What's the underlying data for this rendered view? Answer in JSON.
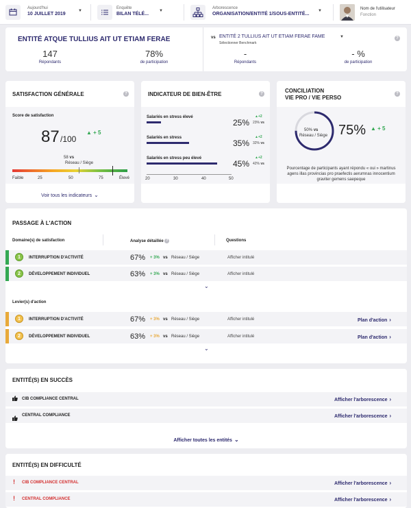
{
  "header": {
    "date_label": "Aujourd'hui",
    "date_value": "10 JUILLET 2019",
    "survey_label": "Enquête",
    "survey_value": "BILAN TÉLÉ...",
    "tree_label": "Arborescence",
    "tree_value": "ORGANISATION/ENTITÉ 1/SOUS-ENTITÉ...",
    "user_name": "Nom de l'utilisateur",
    "user_role": "Fonction"
  },
  "entity": {
    "name": "ENTITÉ ATQUE TULLIUS AIT UT ETIAM FERAE",
    "respondents": "147",
    "respondents_label": "Répondants",
    "participation": "78%",
    "participation_label": "de participation",
    "vs": "vs",
    "bench_name": "ENTITÉ 2 TULLIUS AIT UT ETIAM FERAE FAME",
    "bench_sub": "Sélectionner Benchmark",
    "bench_respondents": "-",
    "bench_respondents_label": "Répondants",
    "bench_participation": "- %",
    "bench_participation_label": "de participation"
  },
  "satisfaction": {
    "title": "SATISFACTION GÉNÉRALE",
    "score_label": "Score de satisfaction",
    "score": "87",
    "max": "/100",
    "delta": "▲ + 5",
    "bench_value": "58",
    "vs": "vs",
    "bench_label": "Réseau / Siège",
    "scale": [
      "Faible",
      "25",
      "50",
      "75",
      "Élevé"
    ],
    "link": "Voir tous les indicateurs",
    "score_fraction": 0.87,
    "bench_fraction": 0.58
  },
  "wellbeing": {
    "title": "INDICATEUR DE BIEN-ÊTRE",
    "rows": [
      {
        "label": "Salariés en stress élevé",
        "value": "25%",
        "delta": "▲+2",
        "bench": "23%",
        "vs": "vs",
        "level": 25
      },
      {
        "label": "Salariés en stress",
        "value": "35%",
        "delta": "▲+2",
        "bench": "32%",
        "vs": "vs",
        "level": 35
      },
      {
        "label": "Salariés en stress peu élevé",
        "value": "45%",
        "delta": "▲+2",
        "bench": "42%",
        "vs": "vs",
        "level": 45
      }
    ],
    "axis": [
      "20",
      "30",
      "40",
      "50"
    ],
    "axis_min": 20,
    "axis_max": 50
  },
  "conciliation": {
    "title_line1": "CONCILIATION",
    "title_line2": "VIE PRO / VIE PERSO",
    "inner_value": "50%",
    "inner_vs": "vs",
    "inner_label": "Réseau / Siège",
    "value": "75%",
    "delta": "▲ + 5",
    "description": "Pourcentage de participants ayant répondu « oui » martinus agens illas provincias pro praefectis aerumnas innocentium graviter gemens saepeque",
    "value_fraction": 0.75
  },
  "action": {
    "title": "PASSAGE À L'ACTION",
    "col_domain": "Domaine(s) de satisfaction",
    "col_analysis": "Analyse détaillée",
    "col_questions": "Questions",
    "domains": [
      {
        "rank": "1",
        "label": "INTERRUPTION D'ACTIVITÉ",
        "value": "67%",
        "delta": "+ 3%",
        "vs": "vs",
        "bench": "Réseau / Siège",
        "question": "Afficher intitulé"
      },
      {
        "rank": "2",
        "label": "DÉVELOPPEMENT INDIVIDUEL",
        "value": "63%",
        "delta": "+ 3%",
        "vs": "vs",
        "bench": "Réseau / Siège",
        "question": "Afficher intitulé"
      }
    ],
    "levers_title": "Levier(s) d'action",
    "levers": [
      {
        "rank": "1",
        "label": "INTERRUPTION D'ACTIVITÉ",
        "value": "67%",
        "delta": "+ 3%",
        "vs": "vs",
        "bench": "Réseau / Siège",
        "question": "Afficher intitulé",
        "plan": "Plan d'action"
      },
      {
        "rank": "2",
        "label": "DÉVELOPPEMENT INDIVIDUEL",
        "value": "63%",
        "delta": "+ 3%",
        "vs": "vs",
        "bench": "Réseau / Siège",
        "question": "Afficher intitulé",
        "plan": "Plan d'action"
      }
    ]
  },
  "success": {
    "title": "ENTITÉ(S) EN SUCCÈS",
    "rows": [
      {
        "label": "CIB COMPLIANCE CENTRAL",
        "link": "Afficher l'arborescence"
      },
      {
        "label": "CENTRAL COMPLIANCE",
        "link": "Afficher l'arborescence"
      }
    ],
    "show_all": "Afficher toutes les entités"
  },
  "difficulty": {
    "title": "ENTITÉ(S) EN DIFFICULTÉ",
    "rows": [
      {
        "label": "CIB COMPLIANCE CENTRAL",
        "link": "Afficher l'arborescence"
      },
      {
        "label": "CENTRAL COMPLIANCE",
        "link": "Afficher l'arborescence"
      }
    ]
  },
  "colors": {
    "navy": "#2d2a6e",
    "green": "#34a853",
    "orange": "#e8a93a",
    "red": "#d32f2f"
  },
  "icons": [
    "calendar-icon",
    "list-icon",
    "tree-icon",
    "avatar",
    "help-icon",
    "chevron-down-icon",
    "chevron-right-icon",
    "thumbs-up-icon",
    "alert-icon"
  ]
}
